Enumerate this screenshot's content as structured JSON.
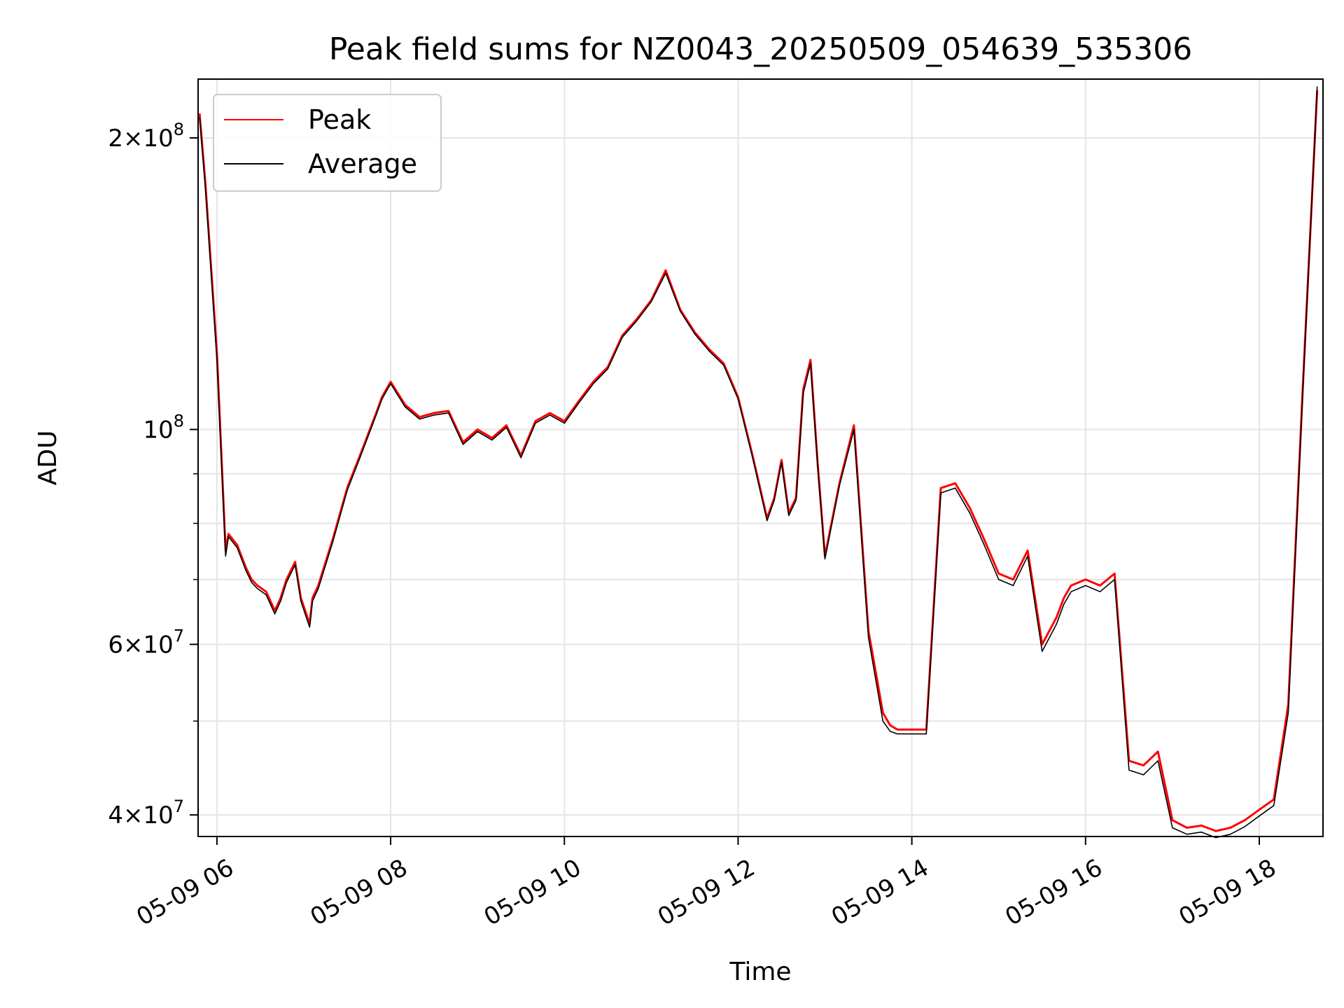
{
  "chart_data": {
    "type": "line",
    "title": "Peak field sums for NZ0043_20250509_054639_535306",
    "xlabel": "Time",
    "ylabel": "ADU",
    "yscale": "log",
    "xlim": [
      "2025-05-09T05:47",
      "2025-05-09T18:44"
    ],
    "ylim": [
      38000000,
      230000000
    ],
    "grid": true,
    "legend_position": "top-left",
    "x_ticks": [
      "05-09 06",
      "05-09 08",
      "05-09 10",
      "05-09 12",
      "05-09 14",
      "05-09 16",
      "05-09 18"
    ],
    "y_ticks": [
      {
        "value": 40000000,
        "label_mantissa": "4",
        "label_exp": "7"
      },
      {
        "value": 60000000,
        "label_mantissa": "6",
        "label_exp": "7"
      },
      {
        "value": 100000000,
        "label_mantissa": "",
        "label_exp": "8"
      },
      {
        "value": 200000000,
        "label_mantissa": "2",
        "label_exp": "8"
      }
    ],
    "x": [
      "2025-05-09T05:48",
      "2025-05-09T05:52",
      "2025-05-09T06:00",
      "2025-05-09T06:06",
      "2025-05-09T06:08",
      "2025-05-09T06:14",
      "2025-05-09T06:20",
      "2025-05-09T06:24",
      "2025-05-09T06:28",
      "2025-05-09T06:34",
      "2025-05-09T06:40",
      "2025-05-09T06:44",
      "2025-05-09T06:48",
      "2025-05-09T06:54",
      "2025-05-09T06:58",
      "2025-05-09T07:04",
      "2025-05-09T07:06",
      "2025-05-09T07:10",
      "2025-05-09T07:20",
      "2025-05-09T07:30",
      "2025-05-09T07:40",
      "2025-05-09T07:50",
      "2025-05-09T07:54",
      "2025-05-09T08:00",
      "2025-05-09T08:10",
      "2025-05-09T08:20",
      "2025-05-09T08:30",
      "2025-05-09T08:40",
      "2025-05-09T08:50",
      "2025-05-09T09:00",
      "2025-05-09T09:10",
      "2025-05-09T09:20",
      "2025-05-09T09:30",
      "2025-05-09T09:40",
      "2025-05-09T09:50",
      "2025-05-09T10:00",
      "2025-05-09T10:10",
      "2025-05-09T10:20",
      "2025-05-09T10:30",
      "2025-05-09T10:40",
      "2025-05-09T10:50",
      "2025-05-09T11:00",
      "2025-05-09T11:10",
      "2025-05-09T11:20",
      "2025-05-09T11:30",
      "2025-05-09T11:40",
      "2025-05-09T11:50",
      "2025-05-09T12:00",
      "2025-05-09T12:10",
      "2025-05-09T12:20",
      "2025-05-09T12:25",
      "2025-05-09T12:30",
      "2025-05-09T12:35",
      "2025-05-09T12:40",
      "2025-05-09T12:45",
      "2025-05-09T12:50",
      "2025-05-09T12:55",
      "2025-05-09T13:00",
      "2025-05-09T13:10",
      "2025-05-09T13:20",
      "2025-05-09T13:30",
      "2025-05-09T13:40",
      "2025-05-09T13:45",
      "2025-05-09T13:50",
      "2025-05-09T14:00",
      "2025-05-09T14:10",
      "2025-05-09T14:20",
      "2025-05-09T14:30",
      "2025-05-09T14:40",
      "2025-05-09T14:50",
      "2025-05-09T15:00",
      "2025-05-09T15:10",
      "2025-05-09T15:20",
      "2025-05-09T15:30",
      "2025-05-09T15:40",
      "2025-05-09T15:45",
      "2025-05-09T15:50",
      "2025-05-09T16:00",
      "2025-05-09T16:10",
      "2025-05-09T16:20",
      "2025-05-09T16:30",
      "2025-05-09T16:40",
      "2025-05-09T16:50",
      "2025-05-09T17:00",
      "2025-05-09T17:10",
      "2025-05-09T17:20",
      "2025-05-09T17:30",
      "2025-05-09T17:40",
      "2025-05-09T17:50",
      "2025-05-09T18:00",
      "2025-05-09T18:10",
      "2025-05-09T18:20",
      "2025-05-09T18:30",
      "2025-05-09T18:40"
    ],
    "series": [
      {
        "name": "Peak",
        "color": "#ff0000",
        "values": [
          212000000,
          180000000,
          120000000,
          75000000,
          78000000,
          76000000,
          72000000,
          70000000,
          69000000,
          68000000,
          65000000,
          67000000,
          70000000,
          73000000,
          67000000,
          63000000,
          67000000,
          69000000,
          77000000,
          87000000,
          95000000,
          104000000,
          108000000,
          112000000,
          106000000,
          103000000,
          104000000,
          104500000,
          97000000,
          100000000,
          98000000,
          101000000,
          94000000,
          102000000,
          104000000,
          102000000,
          107000000,
          112000000,
          116000000,
          125000000,
          130000000,
          136000000,
          146000000,
          133000000,
          126000000,
          121000000,
          117000000,
          108000000,
          94000000,
          81000000,
          85000000,
          93000000,
          82000000,
          85000000,
          110000000,
          118000000,
          92000000,
          74000000,
          88000000,
          101000000,
          62000000,
          51000000,
          49500000,
          49000000,
          49000000,
          49000000,
          87000000,
          88000000,
          83000000,
          77000000,
          71000000,
          70000000,
          75000000,
          60000000,
          64000000,
          67000000,
          69000000,
          70000000,
          69000000,
          71000000,
          45500000,
          45000000,
          46500000,
          39500000,
          38800000,
          39000000,
          38500000,
          38800000,
          39500000,
          40500000,
          41500000,
          52000000,
          110000000,
          224000000
        ]
      },
      {
        "name": "Average",
        "color": "#000000",
        "values": [
          210000000,
          178000000,
          118000000,
          74000000,
          77500000,
          75500000,
          71500000,
          69500000,
          68500000,
          67500000,
          64500000,
          66500000,
          69500000,
          72500000,
          66500000,
          62500000,
          66500000,
          68500000,
          76500000,
          86500000,
          94500000,
          103500000,
          107500000,
          111500000,
          105500000,
          102500000,
          103500000,
          104000000,
          96500000,
          99500000,
          97500000,
          100500000,
          93500000,
          101500000,
          103500000,
          101500000,
          106500000,
          111500000,
          115500000,
          124500000,
          129500000,
          135500000,
          145000000,
          132500000,
          125500000,
          120500000,
          116500000,
          107500000,
          93500000,
          80500000,
          84500000,
          92500000,
          81500000,
          84500000,
          109000000,
          117000000,
          91500000,
          73500000,
          87500000,
          100000000,
          61000000,
          50000000,
          48800000,
          48500000,
          48500000,
          48500000,
          86000000,
          87000000,
          82000000,
          76000000,
          70000000,
          69000000,
          74000000,
          59000000,
          63000000,
          66000000,
          68000000,
          69000000,
          68000000,
          70000000,
          44500000,
          44000000,
          45500000,
          38800000,
          38200000,
          38400000,
          37900000,
          38200000,
          38900000,
          39900000,
          40900000,
          51000000,
          109000000,
          226000000
        ]
      }
    ]
  }
}
